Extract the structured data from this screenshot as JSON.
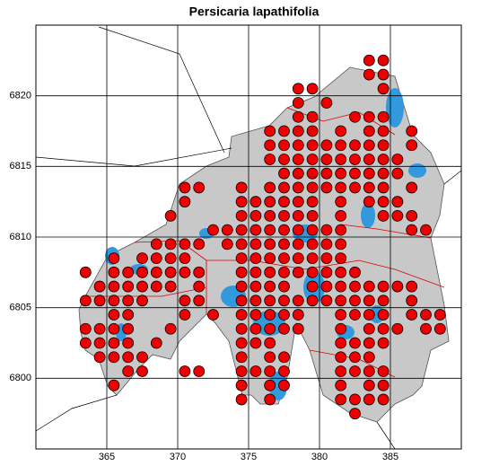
{
  "map": {
    "title": "Persicaria lapathifolia",
    "xlim": [
      360,
      390
    ],
    "ylim": [
      6795,
      6825
    ],
    "xticks": [
      365,
      370,
      375,
      380,
      385
    ],
    "yticks": [
      6800,
      6805,
      6810,
      6815,
      6820
    ],
    "dot_color": "#ee0000",
    "cells": [
      {
        "y": 6822.5,
        "x": [
          383.5,
          384.5
        ]
      },
      {
        "y": 6821.5,
        "x": [
          383.5,
          384.5
        ]
      },
      {
        "y": 6820.5,
        "x": [
          378.5,
          379.5,
          384.5
        ]
      },
      {
        "y": 6819.5,
        "x": [
          378.5,
          380.5
        ]
      },
      {
        "y": 6818.5,
        "x": [
          378.5,
          379.5,
          382.5,
          383.5,
          384.5
        ]
      },
      {
        "y": 6817.5,
        "x": [
          376.5,
          377.5,
          378.5,
          379.5,
          381.5,
          383.5,
          384.5,
          386.5
        ]
      },
      {
        "y": 6816.5,
        "x": [
          376.5,
          377.5,
          378.5,
          379.5,
          380.5,
          381.5,
          382.5,
          383.5,
          384.5,
          386.5
        ]
      },
      {
        "y": 6815.5,
        "x": [
          376.5,
          377.5,
          378.5,
          379.5,
          380.5,
          381.5,
          382.5,
          383.5,
          384.5,
          385.5
        ]
      },
      {
        "y": 6814.5,
        "x": [
          377.5,
          378.5,
          379.5,
          380.5,
          381.5,
          382.5,
          383.5,
          384.5,
          385.5
        ]
      },
      {
        "y": 6813.5,
        "x": [
          370.5,
          371.5,
          374.5,
          376.5,
          377.5,
          378.5,
          379.5,
          380.5,
          381.5,
          382.5,
          383.5,
          384.5,
          386.5
        ]
      },
      {
        "y": 6812.5,
        "x": [
          370.5,
          374.5,
          375.5,
          376.5,
          377.5,
          378.5,
          379.5,
          381.5,
          383.5,
          384.5,
          385.5
        ]
      },
      {
        "y": 6811.5,
        "x": [
          369.5,
          374.5,
          375.5,
          376.5,
          377.5,
          378.5,
          379.5,
          381.5,
          384.5,
          385.5,
          386.5
        ]
      },
      {
        "y": 6810.5,
        "x": [
          372.5,
          373.5,
          374.5,
          375.5,
          376.5,
          377.5,
          378.5,
          379.5,
          380.5,
          381.5,
          386.5,
          387.5
        ]
      },
      {
        "y": 6809.5,
        "x": [
          368.5,
          369.5,
          370.5,
          371.5,
          373.5,
          374.5,
          375.5,
          376.5,
          377.5,
          378.5,
          379.5,
          380.5,
          381.5
        ]
      },
      {
        "y": 6808.5,
        "x": [
          365.5,
          367.5,
          368.5,
          369.5,
          370.5,
          374.5,
          375.5,
          376.5,
          377.5,
          378.5,
          379.5,
          380.5,
          381.5
        ]
      },
      {
        "y": 6807.5,
        "x": [
          363.5,
          365.5,
          366.5,
          367.5,
          368.5,
          369.5,
          370.5,
          371.5,
          374.5,
          375.5,
          376.5,
          377.5,
          378.5,
          379.5,
          380.5,
          381.5,
          382.5
        ]
      },
      {
        "y": 6806.5,
        "x": [
          364.5,
          365.5,
          366.5,
          367.5,
          368.5,
          369.5,
          371.5,
          374.5,
          375.5,
          376.5,
          377.5,
          379.5,
          380.5,
          381.5,
          382.5,
          383.5,
          384.5,
          385.5,
          386.5
        ]
      },
      {
        "y": 6805.5,
        "x": [
          363.5,
          364.5,
          365.5,
          366.5,
          367.5,
          370.5,
          371.5,
          374.5,
          375.5,
          376.5,
          377.5,
          378.5,
          379.5,
          380.5,
          381.5,
          382.5,
          383.5,
          384.5,
          386.5
        ]
      },
      {
        "y": 6804.5,
        "x": [
          365.5,
          366.5,
          370.5,
          372.5,
          374.5,
          375.5,
          376.5,
          377.5,
          378.5,
          381.5,
          382.5,
          383.5,
          384.5,
          386.5,
          387.5,
          388.5
        ]
      },
      {
        "y": 6803.5,
        "x": [
          363.5,
          364.5,
          365.5,
          366.5,
          369.5,
          374.5,
          375.5,
          376.5,
          377.5,
          378.5,
          381.5,
          383.5,
          384.5,
          385.5,
          387.5,
          388.5
        ]
      },
      {
        "y": 6802.5,
        "x": [
          363.5,
          364.5,
          365.5,
          366.5,
          368.5,
          374.5,
          375.5,
          376.5,
          381.5,
          382.5,
          383.5,
          384.5
        ]
      },
      {
        "y": 6801.5,
        "x": [
          364.5,
          365.5,
          366.5,
          367.5,
          374.5,
          376.5,
          377.5,
          381.5,
          382.5,
          383.5
        ]
      },
      {
        "y": 6800.5,
        "x": [
          366.5,
          367.5,
          370.5,
          371.5,
          374.5,
          375.5,
          376.5,
          377.5,
          381.5,
          382.5,
          383.5,
          384.5
        ]
      },
      {
        "y": 6799.5,
        "x": [
          365.5,
          374.5,
          376.5,
          377.5,
          381.5,
          383.5,
          384.5
        ]
      },
      {
        "y": 6798.5,
        "x": [
          374.5,
          376.5,
          381.5,
          382.5,
          383.5,
          384.5
        ]
      },
      {
        "y": 6797.5,
        "x": [
          382.5
        ]
      }
    ]
  }
}
